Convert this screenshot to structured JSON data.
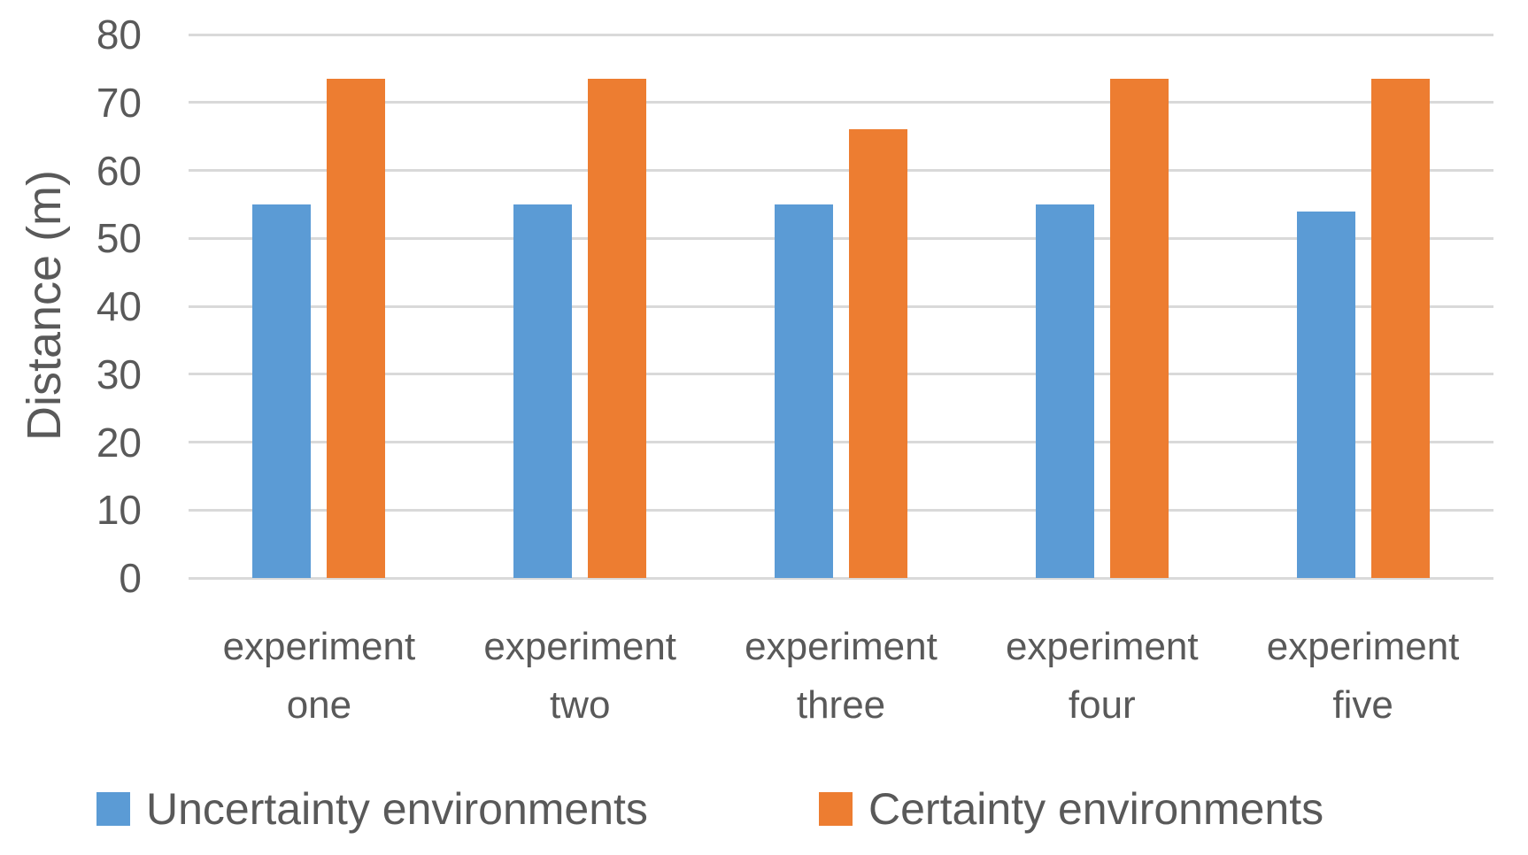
{
  "chart_data": {
    "type": "bar",
    "title": "",
    "xlabel": "",
    "ylabel": "Distance (m)",
    "ylim": [
      0,
      80
    ],
    "yticks": [
      "0",
      "10",
      "20",
      "30",
      "40",
      "50",
      "60",
      "70",
      "80"
    ],
    "grid": true,
    "legend_position": "bottom",
    "categories": [
      "experiment one",
      "experiment two",
      "experiment three",
      "experiment four",
      "experiment five"
    ],
    "series": [
      {
        "name": "Uncertainty environments",
        "color": "#5B9BD5",
        "values": [
          55,
          55,
          55,
          55,
          54
        ]
      },
      {
        "name": "Certainty environments",
        "color": "#ED7D31",
        "values": [
          73.5,
          73.5,
          66,
          73.5,
          73.5
        ]
      }
    ],
    "colors": {
      "text": "#595959",
      "gridline": "#D9D9D9",
      "background": "#FFFFFF",
      "series_blue": "#5B9BD5",
      "series_orange": "#ED7D31"
    }
  }
}
